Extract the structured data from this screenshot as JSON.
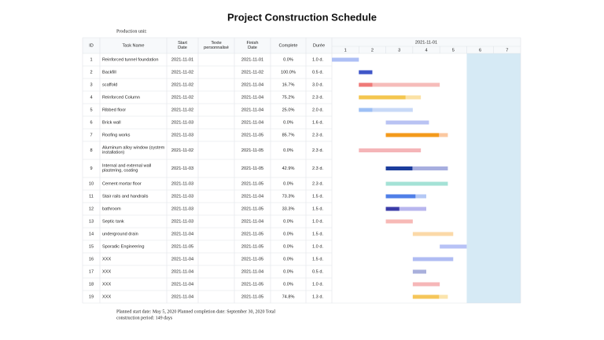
{
  "title": "Project Construction Schedule",
  "production_unit": "Production unit:",
  "table": {
    "headers": [
      "ID",
      "Task Name",
      "Start Date",
      "Texte personnalisé",
      "Finish Date",
      "Complete",
      "Durée"
    ],
    "timeline": {
      "date": "2021-11-01",
      "days": [
        1,
        2,
        3,
        4,
        5,
        6,
        7
      ]
    },
    "rows": [
      {
        "id": 1,
        "task": "Reinforced tunnel foundation",
        "start": "2021-11-01",
        "finish": "2021-11-01",
        "complete": "0.0%",
        "duration": "1.0 d.",
        "color": "#aebff5",
        "progress_color": "#6f8ae6"
      },
      {
        "id": 2,
        "task": "Backfill",
        "start": "2021-11-02",
        "finish": "2021-11-02",
        "complete": "100.0%",
        "duration": "0.5 d.",
        "color": "#aab6ee",
        "progress_color": "#3f56c8"
      },
      {
        "id": 3,
        "task": "scaffold",
        "start": "2021-11-02",
        "finish": "2021-11-04",
        "complete": "16.7%",
        "duration": "3.0 d.",
        "color": "#f6bcba",
        "progress_color": "#ef7a78"
      },
      {
        "id": 4,
        "task": "Reinforced Column",
        "start": "2021-11-02",
        "finish": "2021-11-04",
        "complete": "75.2%",
        "duration": "2.3 d.",
        "color": "#fbe2a5",
        "progress_color": "#f4c64f"
      },
      {
        "id": 5,
        "task": "Ribbed floor",
        "start": "2021-11-02",
        "finish": "2021-11-04",
        "complete": "25.0%",
        "duration": "2.0 d.",
        "color": "#c8d9f7",
        "progress_color": "#9ec0f5"
      },
      {
        "id": 6,
        "task": "Brick wall",
        "start": "2021-11-03",
        "finish": "2021-11-04",
        "complete": "0.0%",
        "duration": "1.6 d.",
        "color": "#b9c3f3",
        "progress_color": "#7f8fe0"
      },
      {
        "id": 7,
        "task": "Roofing works",
        "start": "2021-11-03",
        "finish": "2021-11-05",
        "complete": "85.7%",
        "duration": "2.3 d.",
        "color": "#fbc8a0",
        "progress_color": "#f39a1b"
      },
      {
        "id": 8,
        "task": "Aluminum alloy window (system installation)",
        "start": "2021-11-02",
        "finish": "2021-11-05",
        "complete": "0.0%",
        "duration": "2.3 d.",
        "color": "#f5b5b8",
        "progress_color": "#e87a80"
      },
      {
        "id": 9,
        "task": "Internal and external wall plastering, coating",
        "start": "2021-11-03",
        "finish": "2021-11-05",
        "complete": "42.9%",
        "duration": "2.3 d.",
        "color": "#a7aedf",
        "progress_color": "#1c3d9c"
      },
      {
        "id": 10,
        "task": "Cement mortar floor",
        "start": "2021-11-03",
        "finish": "2021-11-05",
        "complete": "0.0%",
        "duration": "2.3 d.",
        "color": "#a4e2d6",
        "progress_color": "#4cc2aa"
      },
      {
        "id": 11,
        "task": "Stair rails and handrails",
        "start": "2021-11-03",
        "finish": "2021-11-04",
        "complete": "73.3%",
        "duration": "1.5 d.",
        "color": "#b4c8f5",
        "progress_color": "#4f7fe8"
      },
      {
        "id": 12,
        "task": "bathroom",
        "start": "2021-11-03",
        "finish": "2021-11-05",
        "complete": "33.3%",
        "duration": "1.5 d.",
        "color": "#b8b6ee",
        "progress_color": "#3b3ca8"
      },
      {
        "id": 13,
        "task": "Septic tank",
        "start": "2021-11-03",
        "finish": "2021-11-04",
        "complete": "0.0%",
        "duration": "1.0 d.",
        "color": "#f7b9b6",
        "progress_color": "#ee8580"
      },
      {
        "id": 14,
        "task": "underground drain",
        "start": "2021-11-04",
        "finish": "2021-11-05",
        "complete": "0.0%",
        "duration": "1.5 d.",
        "color": "#fbd9a8",
        "progress_color": "#f5b24f"
      },
      {
        "id": 15,
        "task": "Sporadic Engineering",
        "start": "2021-11-05",
        "finish": "2021-11-05",
        "complete": "0.0%",
        "duration": "1.0 d.",
        "color": "#b7c2f6",
        "progress_color": "#7f8fe0"
      },
      {
        "id": 16,
        "task": "XXX",
        "start": "2021-11-04",
        "finish": "2021-11-05",
        "complete": "0.0%",
        "duration": "1.5 d.",
        "color": "#b0bcf3",
        "progress_color": "#7f8fe0"
      },
      {
        "id": 17,
        "task": "XXX",
        "start": "2021-11-04",
        "finish": "2021-11-04",
        "complete": "0.0%",
        "duration": "0.5 d.",
        "color": "#a9b0dc",
        "progress_color": "#6d77c0"
      },
      {
        "id": 18,
        "task": "XXX",
        "start": "2021-11-04",
        "finish": "2021-11-05",
        "complete": "0.0%",
        "duration": "1.0 d.",
        "color": "#f6b7b8",
        "progress_color": "#ee8580"
      },
      {
        "id": 19,
        "task": "XXX",
        "start": "2021-11-04",
        "finish": "2021-11-05",
        "complete": "74.8%",
        "duration": "1.3 d.",
        "color": "#fbe4ac",
        "progress_color": "#f5c65a"
      }
    ]
  },
  "footer": {
    "line1": "Planned start date: May 5, 2020 Planned completion date: September 30, 2020 Total",
    "line2": "construction period: 149 days"
  }
}
